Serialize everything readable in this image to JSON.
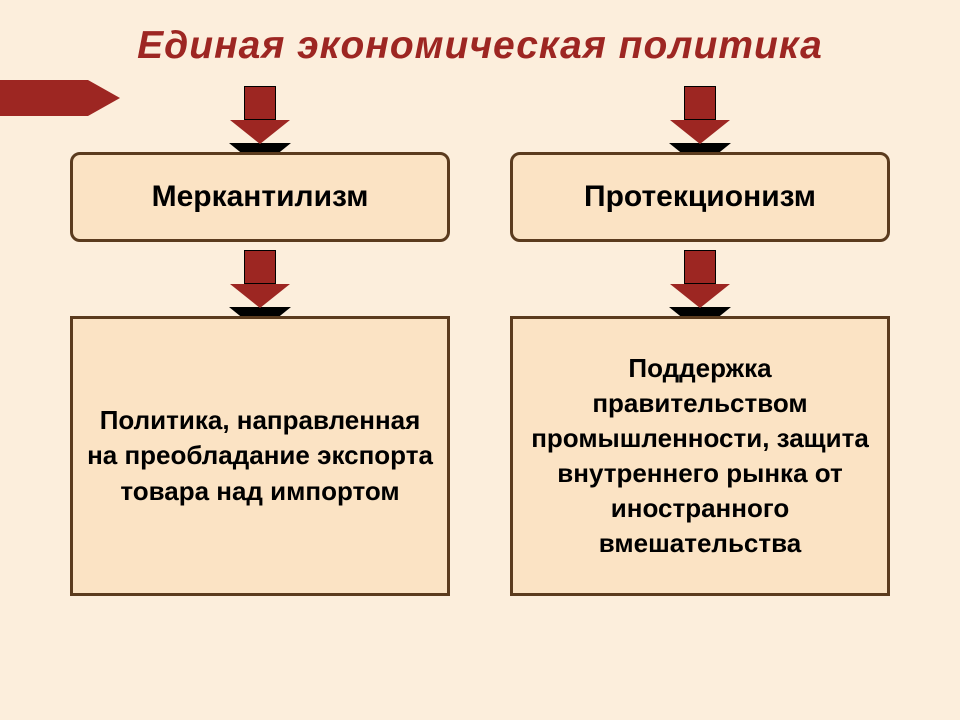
{
  "title": {
    "text": "Единая экономическая политика",
    "color": "#9d2622",
    "fontsize": 39
  },
  "accent": {
    "color": "#9d2622"
  },
  "arrow": {
    "fill": "#9d2622",
    "border": "#000000"
  },
  "box": {
    "bg": "#fbe3c4",
    "border": "#5b3b1e",
    "text_color": "#000000"
  },
  "label_fontsize": 30,
  "desc_fontsize": 26,
  "columns": [
    {
      "label": "Меркантилизм",
      "desc": "Политика, направленная на преобладание экспорта товара над импортом",
      "desc_height": 280
    },
    {
      "label": "Протекционизм",
      "desc": "Поддержка правительством промышленности, защита внутреннего рынка от иностранного вмешательства",
      "desc_height": 280
    }
  ]
}
